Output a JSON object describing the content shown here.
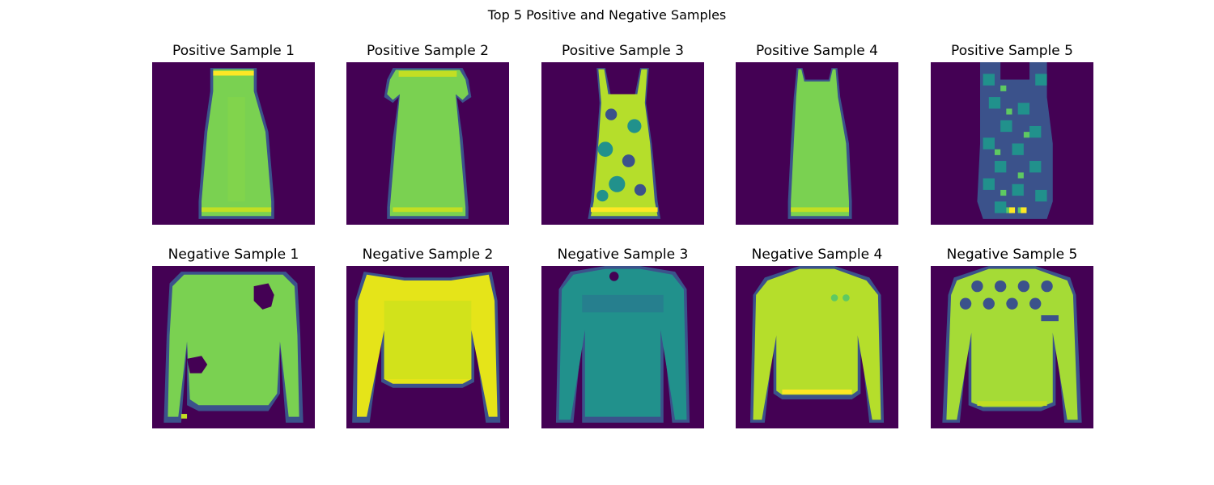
{
  "figure": {
    "title": "Top 5 Positive and Negative Samples",
    "colormap": "viridis",
    "colors": {
      "background": "#440154",
      "dark_blue": "#3b528b",
      "teal": "#21918c",
      "green": "#5ec962",
      "lime": "#a5db36",
      "yellow": "#fde725"
    }
  },
  "positive_samples": [
    {
      "title": "Positive Sample 1",
      "garment": "dress"
    },
    {
      "title": "Positive Sample 2",
      "garment": "dress with short sleeves"
    },
    {
      "title": "Positive Sample 3",
      "garment": "patterned strap dress"
    },
    {
      "title": "Positive Sample 4",
      "garment": "dress"
    },
    {
      "title": "Positive Sample 5",
      "garment": "dotted dress"
    }
  ],
  "negative_samples": [
    {
      "title": "Negative Sample 1",
      "garment": "long-sleeve top"
    },
    {
      "title": "Negative Sample 2",
      "garment": "long-sleeve top"
    },
    {
      "title": "Negative Sample 3",
      "garment": "long-sleeve top"
    },
    {
      "title": "Negative Sample 4",
      "garment": "long-sleeve top"
    },
    {
      "title": "Negative Sample 5",
      "garment": "dotted sweater"
    }
  ]
}
